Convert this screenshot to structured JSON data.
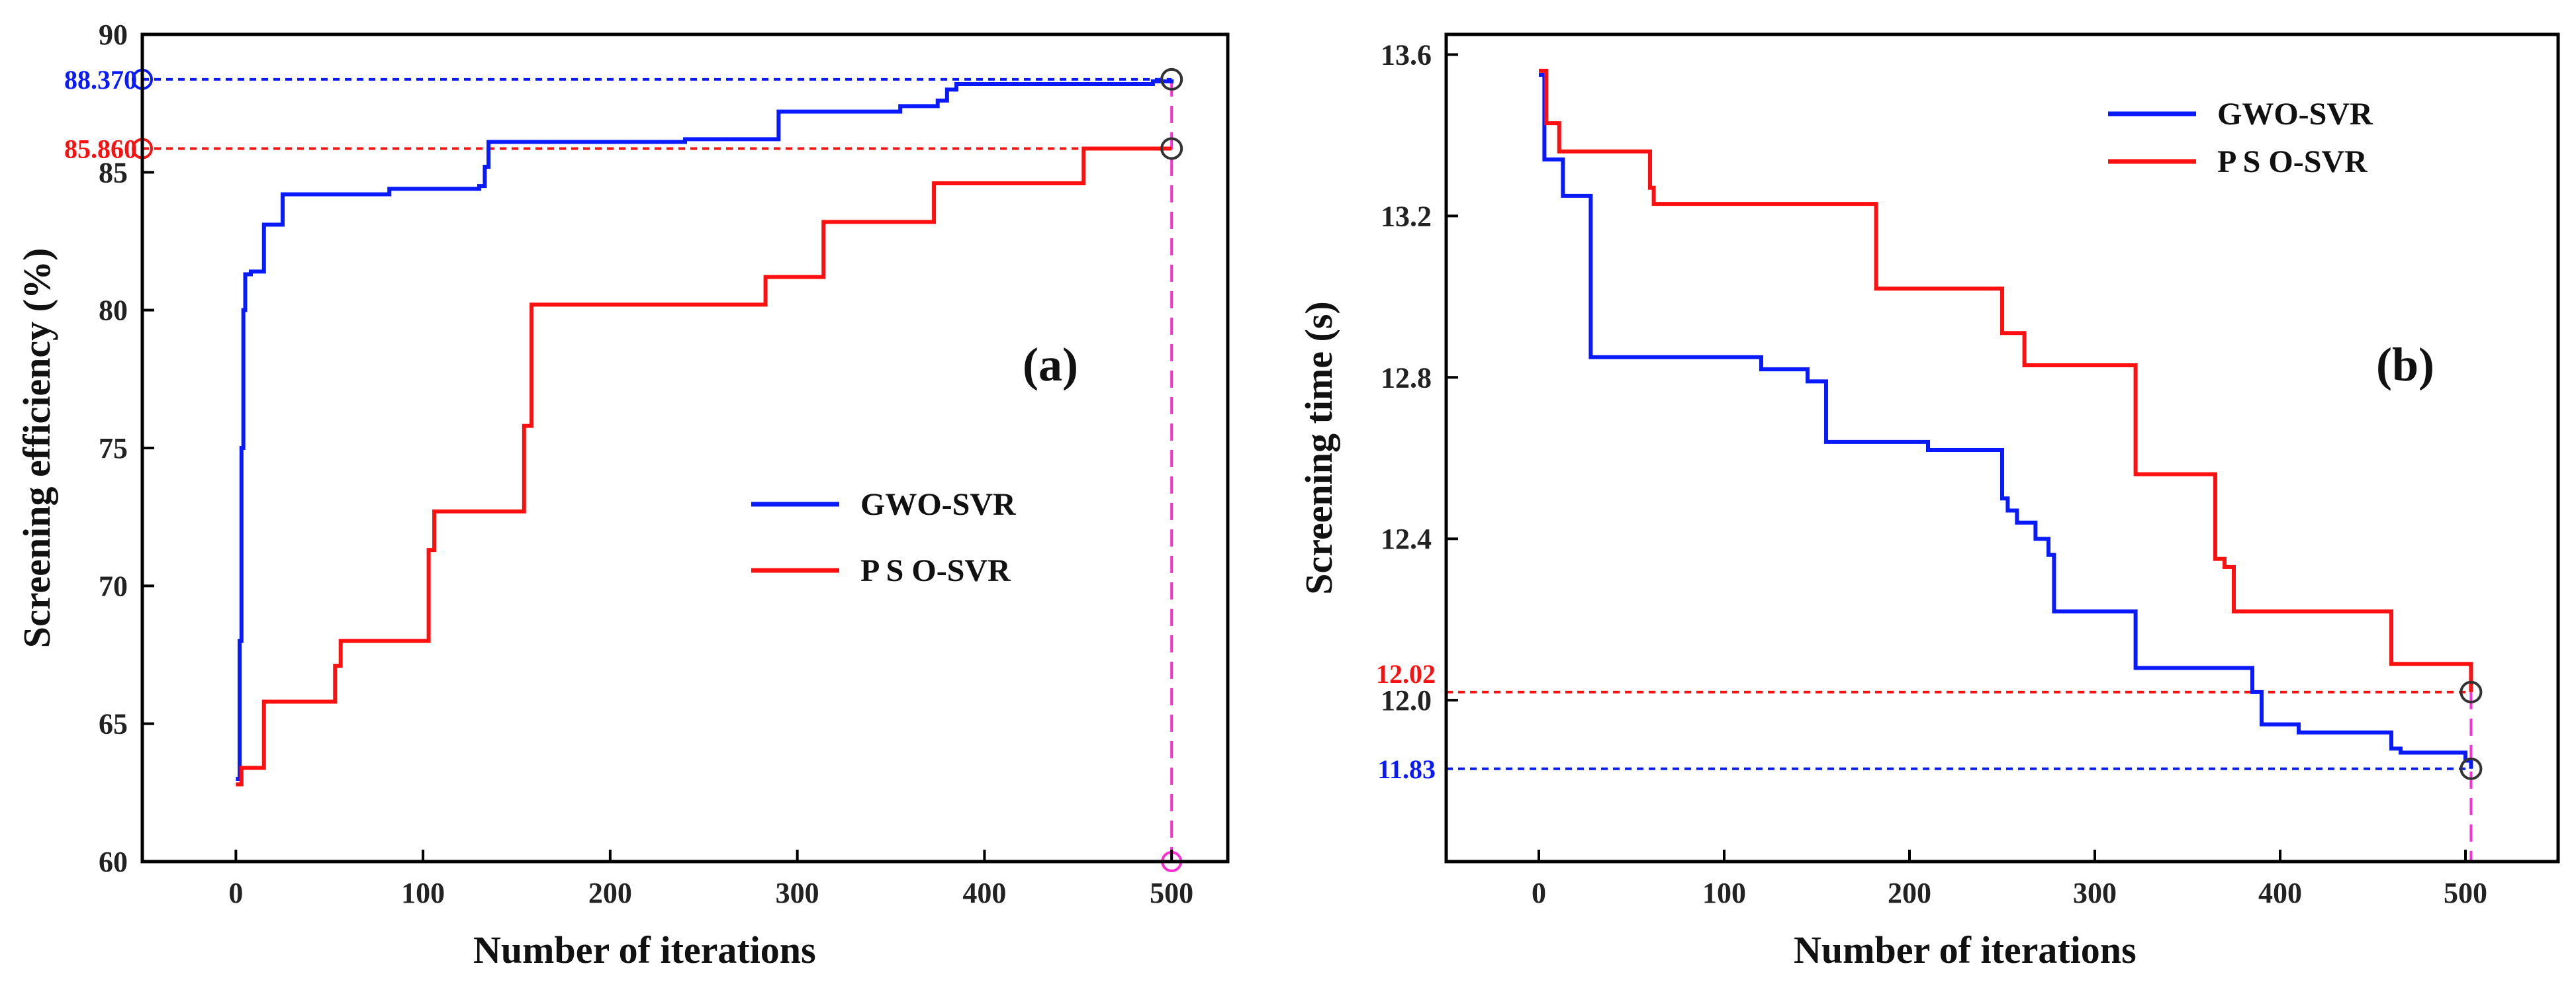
{
  "chart_data": [
    {
      "type": "line",
      "panel_label": "(a)",
      "xlabel": "Number of iterations",
      "ylabel": "Screening efficiency (%)",
      "xlim": [
        -50,
        530
      ],
      "ylim": [
        60,
        90
      ],
      "xticks": [
        0,
        100,
        200,
        300,
        400,
        500
      ],
      "yticks": [
        60,
        65,
        70,
        75,
        80,
        85,
        90
      ],
      "step": true,
      "legend_position": "center-right",
      "series": [
        {
          "name": "GWO-SVR",
          "color": "#0a1aff",
          "x": [
            0,
            2,
            3,
            4,
            5,
            8,
            15,
            25,
            80,
            82,
            130,
            133,
            135,
            240,
            290,
            300,
            355,
            375,
            380,
            385,
            450,
            490,
            500
          ],
          "y": [
            63,
            68,
            75,
            80,
            81.3,
            81.4,
            83.1,
            84.2,
            84.2,
            84.4,
            84.5,
            85.2,
            86.1,
            86.2,
            87.2,
            87.2,
            87.4,
            87.6,
            88.0,
            88.2,
            88.2,
            88.3,
            88.37
          ]
        },
        {
          "name": "P S O-SVR",
          "color": "#ff1010",
          "x": [
            0,
            3,
            10,
            15,
            50,
            53,
            56,
            100,
            103,
            106,
            150,
            154,
            158,
            280,
            283,
            310,
            314,
            370,
            373,
            450,
            453,
            500
          ],
          "y": [
            62.8,
            63.4,
            63.4,
            65.8,
            65.8,
            67.1,
            68.0,
            68.0,
            71.3,
            72.7,
            72.7,
            75.8,
            80.2,
            80.2,
            81.2,
            81.2,
            83.2,
            83.2,
            84.6,
            84.6,
            85.86,
            85.86
          ]
        }
      ],
      "annotations": [
        {
          "text": "88.370",
          "value": 88.37,
          "color": "#0a1aff"
        },
        {
          "text": "85.860",
          "value": 85.86,
          "color": "#ff1010"
        }
      ],
      "final_iteration": 500
    },
    {
      "type": "line",
      "panel_label": "(b)",
      "xlabel": "Number of iterations",
      "ylabel": "Screening time (s)",
      "xlim": [
        -50,
        550
      ],
      "ylim": [
        11.6,
        13.65
      ],
      "xticks": [
        0,
        100,
        200,
        300,
        400,
        500
      ],
      "yticks": [
        12.0,
        12.4,
        12.8,
        13.2,
        13.6
      ],
      "ytick_labels": [
        "12.0",
        "12.4",
        "12.8",
        "13.2",
        "13.6"
      ],
      "step": true,
      "legend_position": "top-center",
      "series": [
        {
          "name": "GWO-SVR",
          "color": "#0a1aff",
          "x": [
            0,
            3,
            13,
            28,
            120,
            145,
            155,
            210,
            250,
            253,
            258,
            268,
            275,
            278,
            320,
            322,
            385,
            390,
            410,
            460,
            465,
            500,
            503
          ],
          "y": [
            13.55,
            13.34,
            13.25,
            12.85,
            12.82,
            12.79,
            12.64,
            12.62,
            12.5,
            12.47,
            12.44,
            12.4,
            12.36,
            12.22,
            12.22,
            12.08,
            12.02,
            11.94,
            11.92,
            11.88,
            11.87,
            11.85,
            11.83
          ]
        },
        {
          "name": "P S O-SVR",
          "color": "#ff1010",
          "x": [
            0,
            4,
            11,
            58,
            60,
            62,
            180,
            182,
            250,
            262,
            322,
            365,
            370,
            375,
            460,
            500,
            503
          ],
          "y": [
            13.56,
            13.43,
            13.36,
            13.36,
            13.27,
            13.23,
            13.23,
            13.02,
            12.91,
            12.83,
            12.56,
            12.35,
            12.33,
            12.22,
            12.09,
            12.09,
            12.02
          ]
        }
      ],
      "annotations": [
        {
          "text": "12.02",
          "value": 12.02,
          "color": "#ff1010"
        },
        {
          "text": "11.83",
          "value": 11.83,
          "color": "#0a1aff"
        }
      ],
      "final_iteration": 503
    }
  ]
}
